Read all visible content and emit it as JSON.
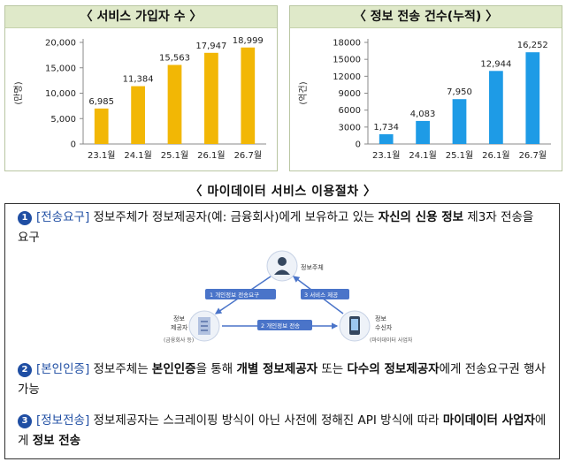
{
  "chart_data": [
    {
      "type": "bar",
      "title": "〈 서비스 가입자 수 〉",
      "ylabel": "(만명)",
      "categories": [
        "23.1월",
        "24.1월",
        "25.1월",
        "26.1월",
        "26.7월"
      ],
      "values": [
        6985,
        11384,
        15563,
        17947,
        18999
      ],
      "value_labels": [
        "6,985",
        "11,384",
        "15,563",
        "17,947",
        "18,999"
      ],
      "ylim": [
        0,
        20000
      ],
      "yticks": [
        0,
        5000,
        10000,
        15000,
        20000
      ],
      "ytick_labels": [
        "0",
        "5,000",
        "10,000",
        "15,000",
        "20,000"
      ],
      "bar_color": "#f2b705",
      "grid": false
    },
    {
      "type": "bar",
      "title": "〈 정보 전송 건수(누적) 〉",
      "ylabel": "(억건)",
      "categories": [
        "23.1월",
        "24.1월",
        "25.1월",
        "26.1월",
        "26.7월"
      ],
      "values": [
        1734,
        4083,
        7950,
        12944,
        16252
      ],
      "value_labels": [
        "1,734",
        "4,083",
        "7,950",
        "12,944",
        "16,252"
      ],
      "ylim": [
        0,
        18000
      ],
      "yticks": [
        0,
        3000,
        6000,
        9000,
        12000,
        15000,
        18000
      ],
      "ytick_labels": [
        "0",
        "3000",
        "6000",
        "9000",
        "12000",
        "15000",
        "18000"
      ],
      "bar_color": "#1e9be6",
      "grid": false
    }
  ],
  "procedure": {
    "title": "〈 마이데이터 서비스 이용절차 〉",
    "steps": [
      {
        "num": "1",
        "tag": "[전송요구]",
        "t1": " 정보주체가 정보제공자(예: 금융회사)에게 보유하고 있는 ",
        "t2": "자신의 신용 정보",
        "t3": " 제3자 전송을 요구"
      },
      {
        "num": "2",
        "tag": "[본인인증]",
        "t1": " 정보주체는 ",
        "t2": "본인인증",
        "t3": "을 통해 ",
        "t4": "개별 정보제공자",
        "t5": " 또는 ",
        "t6": "다수의 정보제공자",
        "t7": "에게 전송요구권 행사 가능"
      },
      {
        "num": "3",
        "tag": "[정보전송]",
        "t1": " 정보제공자는 스크레이핑 방식이 아닌 사전에 정해진 API 방식에 따라 ",
        "t2": "마이데이터 사업자",
        "t3": "에게 ",
        "t4": "정보 전송"
      }
    ],
    "diagram": {
      "subject": "정보주체",
      "provider": "정보\n제공자",
      "provider_sub": "(금융회사 등)",
      "receiver": "정보\n수신자",
      "receiver_sub": "(마이데이터 사업자)",
      "arrow1": "1  개인정보 전송요구",
      "arrow2": "2  개인정보 전송",
      "arrow3": "3  서비스 제공",
      "arrow_color": "#4a74c9"
    }
  }
}
